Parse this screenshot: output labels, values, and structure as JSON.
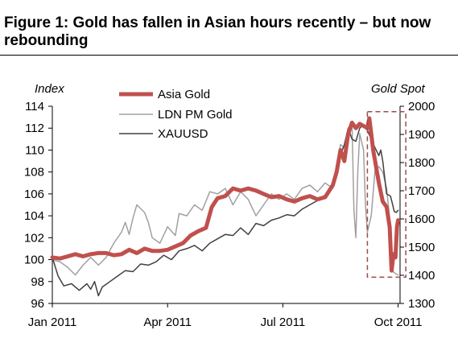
{
  "figure": {
    "title": "Figure 1: Gold has fallen in Asian hours recently – but now rebounding"
  },
  "chart_data": {
    "type": "line",
    "left_axis": {
      "label": "Index",
      "range": [
        96,
        114
      ],
      "ticks": [
        96,
        98,
        100,
        102,
        104,
        106,
        108,
        110,
        112,
        114
      ]
    },
    "right_axis": {
      "label": "Gold Spot",
      "range": [
        1300,
        2000
      ],
      "ticks": [
        1300,
        1400,
        1500,
        1600,
        1700,
        1800,
        1900,
        2000
      ]
    },
    "x_axis": {
      "range": [
        0,
        9.05
      ],
      "ticks": [
        0,
        3,
        6,
        9
      ],
      "tick_labels": [
        "Jan 2011",
        "Apr 2011",
        "Jul 2011",
        "Oct 2011"
      ]
    },
    "legend_position": "top-center",
    "annotation": {
      "type": "dashed-box",
      "x_range": [
        8.2,
        9.2
      ],
      "y_range_left": [
        98.4,
        113.5
      ],
      "color": "#9b4a4a"
    },
    "series": [
      {
        "name": "Asia Gold",
        "axis": "left",
        "color": "#c0504d",
        "width": 5,
        "points": [
          [
            0,
            100.2
          ],
          [
            0.2,
            100.1
          ],
          [
            0.4,
            100.3
          ],
          [
            0.6,
            100.5
          ],
          [
            0.8,
            100.3
          ],
          [
            1.0,
            100.5
          ],
          [
            1.2,
            100.6
          ],
          [
            1.4,
            100.6
          ],
          [
            1.6,
            100.4
          ],
          [
            1.8,
            100.5
          ],
          [
            2.0,
            100.9
          ],
          [
            2.2,
            100.6
          ],
          [
            2.4,
            101.0
          ],
          [
            2.6,
            100.8
          ],
          [
            2.8,
            100.8
          ],
          [
            3.0,
            100.9
          ],
          [
            3.2,
            101.2
          ],
          [
            3.4,
            101.5
          ],
          [
            3.6,
            102.2
          ],
          [
            3.8,
            102.6
          ],
          [
            4.0,
            102.9
          ],
          [
            4.15,
            104.8
          ],
          [
            4.3,
            105.6
          ],
          [
            4.5,
            105.8
          ],
          [
            4.7,
            106.5
          ],
          [
            4.9,
            106.3
          ],
          [
            5.1,
            106.5
          ],
          [
            5.3,
            106.3
          ],
          [
            5.5,
            106.0
          ],
          [
            5.7,
            105.7
          ],
          [
            5.9,
            105.8
          ],
          [
            6.1,
            105.5
          ],
          [
            6.3,
            105.3
          ],
          [
            6.5,
            105.6
          ],
          [
            6.7,
            105.8
          ],
          [
            6.9,
            105.5
          ],
          [
            7.1,
            105.7
          ],
          [
            7.3,
            106.8
          ],
          [
            7.4,
            108.0
          ],
          [
            7.5,
            110.0
          ],
          [
            7.6,
            109.0
          ],
          [
            7.7,
            111.5
          ],
          [
            7.8,
            112.5
          ],
          [
            7.9,
            112.0
          ],
          [
            8.0,
            112.4
          ],
          [
            8.1,
            112.2
          ],
          [
            8.2,
            112.0
          ],
          [
            8.25,
            112.9
          ],
          [
            8.3,
            111.5
          ],
          [
            8.35,
            110.0
          ],
          [
            8.4,
            109.0
          ],
          [
            8.5,
            107.0
          ],
          [
            8.6,
            105.3
          ],
          [
            8.7,
            104.8
          ],
          [
            8.78,
            103.0
          ],
          [
            8.83,
            99.0
          ],
          [
            8.88,
            100.5
          ],
          [
            8.93,
            100.2
          ],
          [
            8.97,
            103.0
          ],
          [
            9.0,
            103.6
          ]
        ]
      },
      {
        "name": "LDN PM Gold",
        "axis": "left",
        "color": "#a0a0a0",
        "width": 1.5,
        "points": [
          [
            0,
            100.0
          ],
          [
            0.2,
            99.8
          ],
          [
            0.4,
            99.3
          ],
          [
            0.6,
            98.6
          ],
          [
            0.8,
            99.5
          ],
          [
            1.0,
            100.2
          ],
          [
            1.2,
            99.5
          ],
          [
            1.4,
            100.2
          ],
          [
            1.6,
            101.5
          ],
          [
            1.8,
            102.5
          ],
          [
            1.9,
            103.4
          ],
          [
            2.0,
            102.3
          ],
          [
            2.1,
            103.8
          ],
          [
            2.2,
            105.0
          ],
          [
            2.4,
            104.3
          ],
          [
            2.5,
            103.4
          ],
          [
            2.6,
            102.0
          ],
          [
            2.8,
            101.5
          ],
          [
            3.0,
            103.0
          ],
          [
            3.2,
            102.2
          ],
          [
            3.3,
            104.2
          ],
          [
            3.5,
            104.0
          ],
          [
            3.7,
            105.0
          ],
          [
            3.9,
            104.5
          ],
          [
            4.1,
            106.2
          ],
          [
            4.3,
            106.0
          ],
          [
            4.5,
            106.5
          ],
          [
            4.7,
            105.0
          ],
          [
            4.9,
            106.2
          ],
          [
            5.1,
            105.5
          ],
          [
            5.3,
            104.0
          ],
          [
            5.5,
            105.0
          ],
          [
            5.7,
            106.0
          ],
          [
            5.9,
            105.5
          ],
          [
            6.1,
            106.0
          ],
          [
            6.3,
            105.5
          ],
          [
            6.5,
            106.5
          ],
          [
            6.7,
            106.8
          ],
          [
            6.9,
            106.2
          ],
          [
            7.1,
            107.0
          ],
          [
            7.3,
            106.5
          ],
          [
            7.4,
            108.5
          ],
          [
            7.5,
            110.5
          ],
          [
            7.6,
            110.2
          ],
          [
            7.7,
            111.0
          ],
          [
            7.8,
            112.5
          ],
          [
            7.85,
            104.5
          ],
          [
            7.9,
            102.0
          ],
          [
            7.95,
            108.0
          ],
          [
            8.0,
            111.5
          ],
          [
            8.1,
            110.0
          ],
          [
            8.15,
            105.0
          ],
          [
            8.2,
            102.5
          ],
          [
            8.3,
            104.0
          ],
          [
            8.4,
            108.2
          ],
          [
            8.5,
            108.5
          ],
          [
            8.6,
            108.0
          ],
          [
            8.7,
            106.5
          ],
          [
            8.8,
            103.0
          ],
          [
            8.85,
            99.0
          ],
          [
            8.9,
            98.8
          ],
          [
            9.0,
            98.6
          ]
        ]
      },
      {
        "name": "XAUUSD",
        "axis": "left",
        "color": "#404040",
        "width": 1.5,
        "points": [
          [
            0,
            100.2
          ],
          [
            0.15,
            98.5
          ],
          [
            0.3,
            97.6
          ],
          [
            0.5,
            97.8
          ],
          [
            0.7,
            97.2
          ],
          [
            0.9,
            97.8
          ],
          [
            1.0,
            97.3
          ],
          [
            1.1,
            98.0
          ],
          [
            1.2,
            96.7
          ],
          [
            1.3,
            97.5
          ],
          [
            1.5,
            98.0
          ],
          [
            1.7,
            98.5
          ],
          [
            1.9,
            99.0
          ],
          [
            2.1,
            98.9
          ],
          [
            2.3,
            99.6
          ],
          [
            2.5,
            99.5
          ],
          [
            2.7,
            99.8
          ],
          [
            2.9,
            100.4
          ],
          [
            3.1,
            100.0
          ],
          [
            3.3,
            100.8
          ],
          [
            3.5,
            101.0
          ],
          [
            3.7,
            101.3
          ],
          [
            3.9,
            100.8
          ],
          [
            4.1,
            101.5
          ],
          [
            4.3,
            101.9
          ],
          [
            4.5,
            102.3
          ],
          [
            4.7,
            102.2
          ],
          [
            4.9,
            102.9
          ],
          [
            5.1,
            102.3
          ],
          [
            5.3,
            103.3
          ],
          [
            5.5,
            103.1
          ],
          [
            5.7,
            103.6
          ],
          [
            5.9,
            103.8
          ],
          [
            6.1,
            104.1
          ],
          [
            6.3,
            104.0
          ],
          [
            6.5,
            104.6
          ],
          [
            6.7,
            105.0
          ],
          [
            6.9,
            105.4
          ],
          [
            7.1,
            105.9
          ],
          [
            7.3,
            107.0
          ],
          [
            7.4,
            108.5
          ],
          [
            7.5,
            109.5
          ],
          [
            7.6,
            110.5
          ],
          [
            7.7,
            112.0
          ],
          [
            7.8,
            111.0
          ],
          [
            7.9,
            110.8
          ],
          [
            8.0,
            112.0
          ],
          [
            8.1,
            112.3
          ],
          [
            8.2,
            111.8
          ],
          [
            8.3,
            111.0
          ],
          [
            8.4,
            110.2
          ],
          [
            8.5,
            109.5
          ],
          [
            8.55,
            110.0
          ],
          [
            8.6,
            109.0
          ],
          [
            8.7,
            106.0
          ],
          [
            8.8,
            105.8
          ],
          [
            8.85,
            105.1
          ],
          [
            8.9,
            104.4
          ],
          [
            8.95,
            104.3
          ],
          [
            9.0,
            104.5
          ]
        ]
      }
    ]
  }
}
